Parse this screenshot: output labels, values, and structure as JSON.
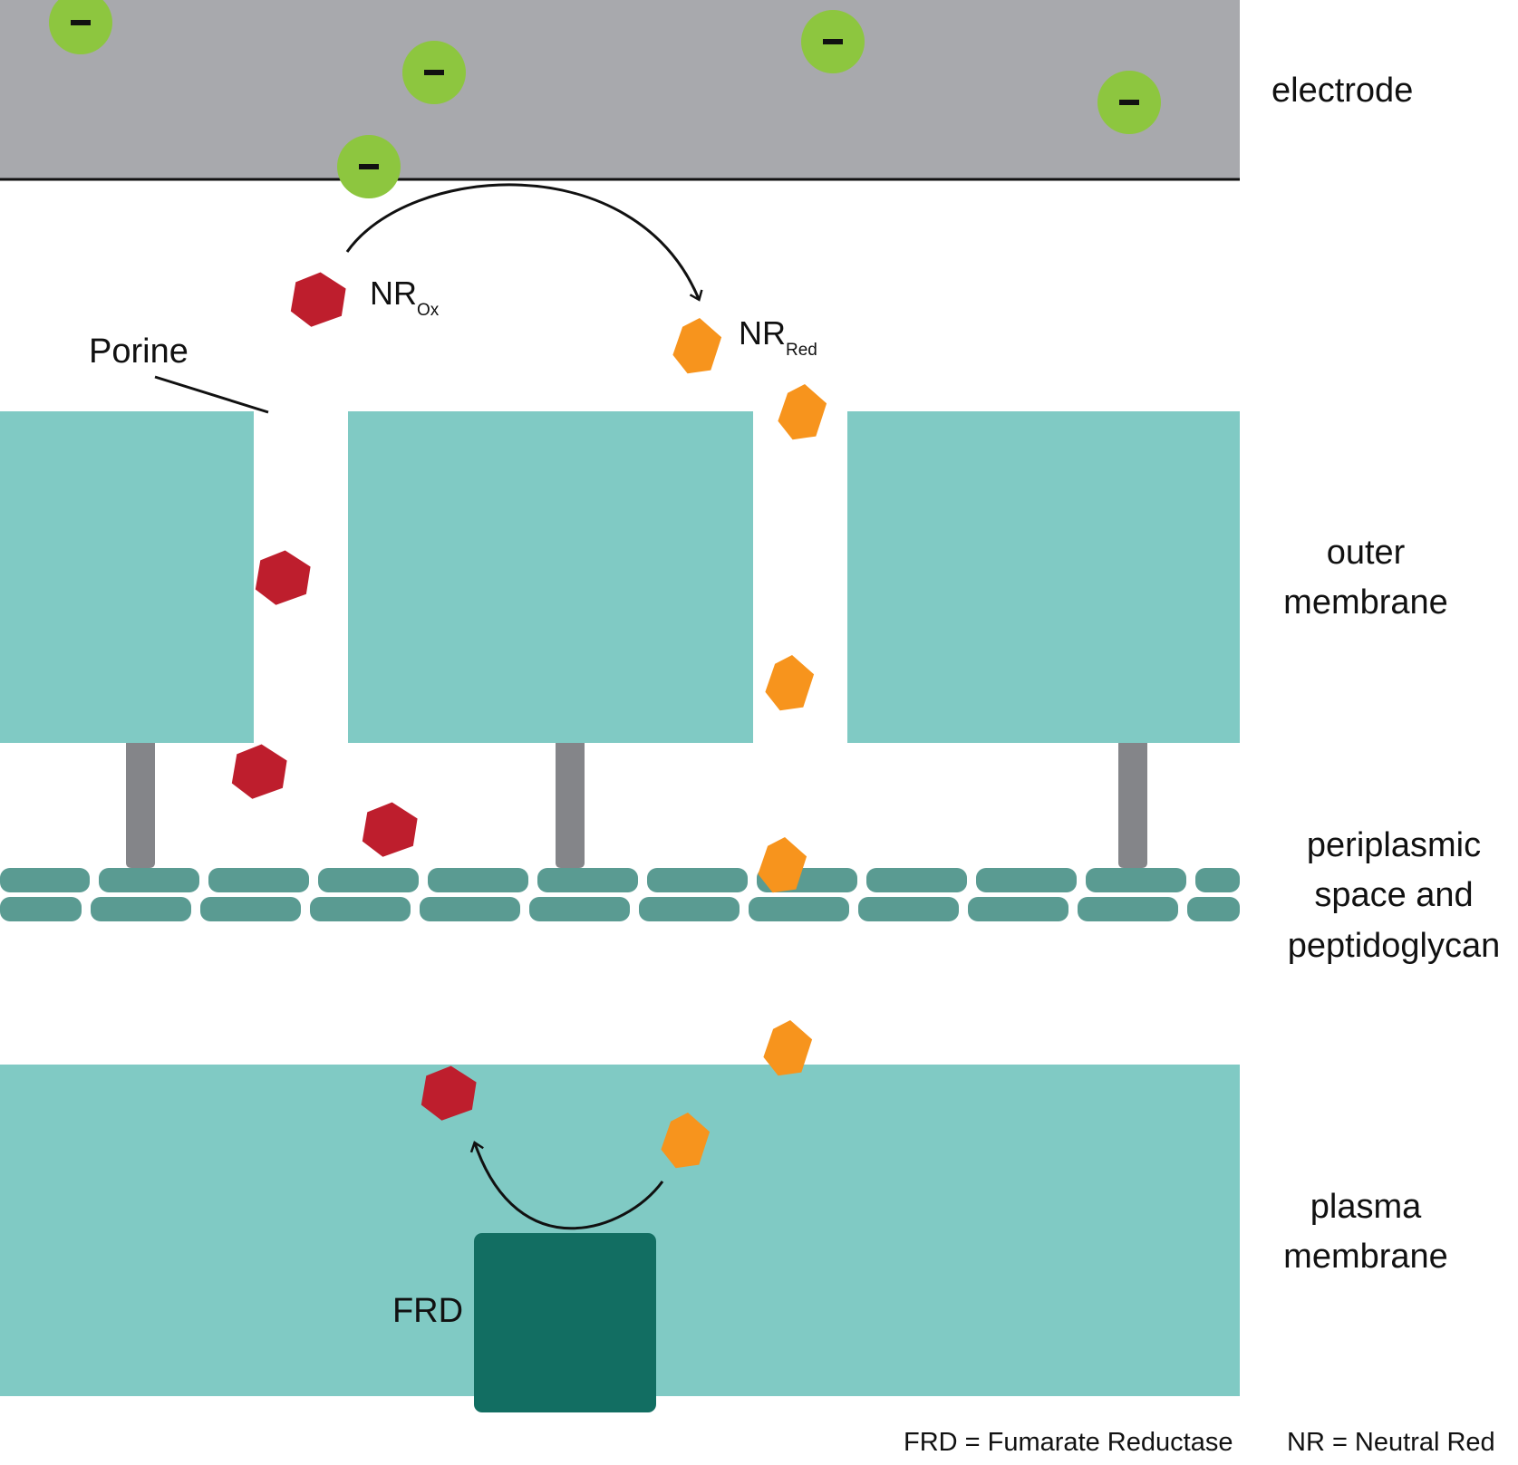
{
  "labels": {
    "electrode": "electrode",
    "outer_membrane": [
      "outer",
      "membrane"
    ],
    "periplasmic": [
      "periplasmic",
      "space and",
      "peptidoglycan"
    ],
    "plasma_membrane": [
      "plasma",
      "membrane"
    ],
    "porine": "Porine",
    "nr_ox_main": "NR",
    "nr_ox_sub": "Ox",
    "nr_red_main": "NR",
    "nr_red_sub": "Red",
    "frd": "FRD",
    "electron_sign": "−"
  },
  "legend": {
    "frd": "FRD = Fumarate Reductase",
    "nr": "NR = Neutral Red"
  },
  "colors": {
    "electrode": "#a8a9ad",
    "membrane": "#80cac4",
    "peptidoglycan": "#5a9b92",
    "connector": "#848589",
    "frd": "#126e62",
    "electron": "#8dc63f",
    "nr_ox": "#be1e2d",
    "nr_red": "#f7941d",
    "line": "#111111"
  }
}
